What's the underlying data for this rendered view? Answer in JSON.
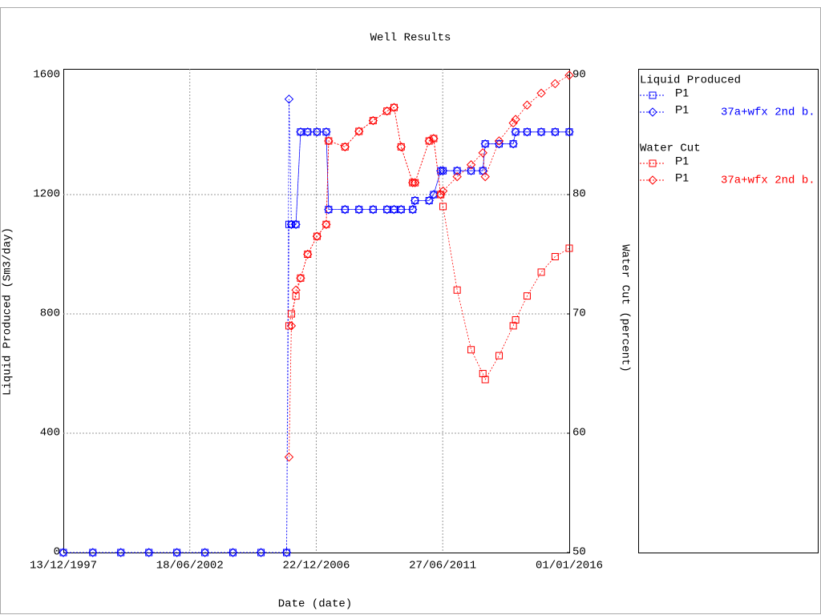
{
  "chart_data": {
    "type": "line",
    "title": "Well Results",
    "x_label": "Date (date)",
    "y_label": "Liquid Produced (Sm3/day)",
    "y2_label": "Water Cut (percent)",
    "legend_groups": [
      "Liquid Produced",
      "Water Cut"
    ],
    "x": [
      "13/12/1997",
      "01/01/1999",
      "01/01/2000",
      "01/01/2001",
      "01/01/2002",
      "01/01/2003",
      "01/01/2004",
      "01/01/2005",
      "01/12/2005",
      "01/01/2006",
      "01/02/2006",
      "01/04/2006",
      "01/06/2006",
      "01/09/2006",
      "01/01/2007",
      "01/05/2007",
      "01/06/2007",
      "01/01/2008",
      "01/07/2008",
      "01/01/2009",
      "01/07/2009",
      "01/10/2009",
      "01/01/2010",
      "01/06/2010",
      "01/07/2010",
      "01/01/2011",
      "01/03/2011",
      "01/06/2011",
      "01/07/2011",
      "01/01/2012",
      "01/07/2012",
      "01/12/2012",
      "01/01/2013",
      "01/07/2013",
      "01/01/2014",
      "01/02/2014",
      "01/07/2014",
      "01/01/2015",
      "01/07/2015",
      "01/01/2016"
    ],
    "xlim": [
      "13/12/1997",
      "01/01/2016"
    ],
    "xticks": [
      "13/12/1997",
      "18/06/2002",
      "22/12/2006",
      "27/06/2011",
      "01/01/2016"
    ],
    "ylim": [
      0,
      1600
    ],
    "yticks": [
      0,
      400,
      800,
      1200,
      1600
    ],
    "y2lim": [
      50,
      90
    ],
    "y2ticks": [
      50,
      60,
      70,
      80,
      90
    ],
    "grid": true,
    "series": [
      {
        "name": "P1",
        "marker": "square",
        "color": "#0000ff",
        "values": [
          0,
          0,
          0,
          0,
          0,
          0,
          0,
          0,
          0,
          1100,
          1100,
          1100,
          1410,
          1410,
          1410,
          1410,
          1150,
          1150,
          1150,
          1150,
          1150,
          1150,
          1150,
          1150,
          1180,
          1180,
          1200,
          1280,
          1280,
          1280,
          1280,
          1280,
          1370,
          1370,
          1370,
          1410,
          1410,
          1410,
          1410,
          1410
        ]
      },
      {
        "name": "P1",
        "case": "37a+wfx 2nd b.",
        "marker": "diamond",
        "color": "#0000ff",
        "values": [
          0,
          0,
          0,
          0,
          0,
          0,
          0,
          0,
          0,
          1520,
          1100,
          1100,
          1410,
          1410,
          1410,
          1410,
          1150,
          1150,
          1150,
          1150,
          1150,
          1150,
          1150,
          1150,
          1180,
          1180,
          1200,
          1280,
          1280,
          1280,
          1280,
          1280,
          1370,
          1370,
          1370,
          1410,
          1410,
          1410,
          1410,
          1410
        ]
      },
      {
        "name": "P1",
        "marker": "square",
        "color": "#ff0000",
        "axis": "y2",
        "values": [
          null,
          null,
          null,
          null,
          null,
          null,
          null,
          null,
          null,
          69,
          70,
          71.5,
          73,
          75,
          76.5,
          77.5,
          84.5,
          84,
          85.3,
          86.2,
          87,
          87.3,
          84,
          81,
          81,
          84.5,
          84.7,
          80,
          79,
          72,
          67,
          65,
          64.5,
          66.5,
          69,
          69.5,
          71.5,
          73.5,
          74.8,
          75.5
        ]
      },
      {
        "name": "P1",
        "case": "37a+wfx 2nd b.",
        "marker": "diamond",
        "color": "#ff0000",
        "axis": "y2",
        "values": [
          null,
          null,
          null,
          null,
          null,
          null,
          null,
          null,
          null,
          58,
          69,
          72,
          73,
          75,
          76.5,
          77.5,
          84.5,
          84,
          85.3,
          86.2,
          87,
          87.3,
          84,
          81,
          81,
          84.5,
          84.7,
          80,
          80.3,
          81.5,
          82.5,
          83.5,
          81.5,
          84.5,
          86,
          86.3,
          87.5,
          88.5,
          89.3,
          90
        ]
      }
    ]
  }
}
